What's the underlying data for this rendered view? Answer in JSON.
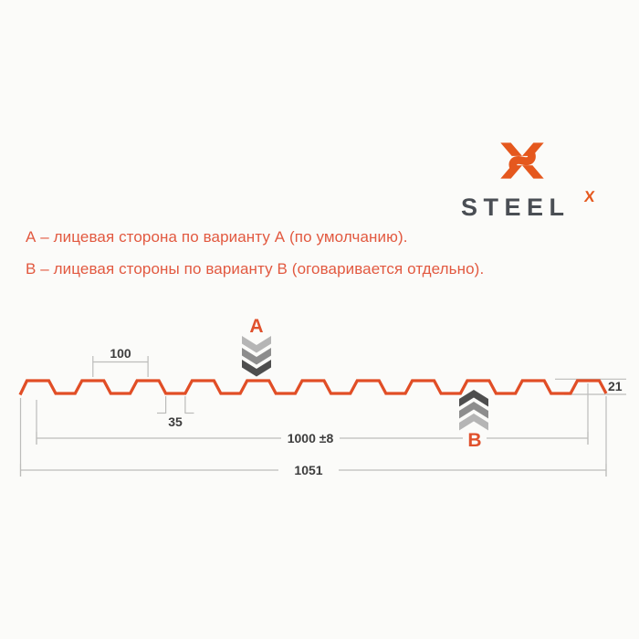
{
  "logo": {
    "wordmark": "STEEL",
    "suffix": "X",
    "orange": "#e5581e",
    "dark": "#4a4e54"
  },
  "notes": {
    "color": "#e25940",
    "line_a": "А – лицевая сторона по варианту А (по умолчанию).",
    "line_b": "В – лицевая стороны по варианту В (оговаривается отдельно)."
  },
  "diagram": {
    "profile_color": "#e14e26",
    "dim_line_color": "#bcbcba",
    "dim_text_color": "#3d3d3d",
    "marker_color": "#e0512d",
    "chevron_light": "#b5b5b5",
    "chevron_mid": "#8d8d8d",
    "chevron_dark": "#4e4e4e",
    "marker_a": "А",
    "marker_b": "В",
    "dims": {
      "pitch": "100",
      "trough_width": "35",
      "profile_height": "21",
      "cover_width": "1000 ±8",
      "overall_width": "1051"
    }
  }
}
